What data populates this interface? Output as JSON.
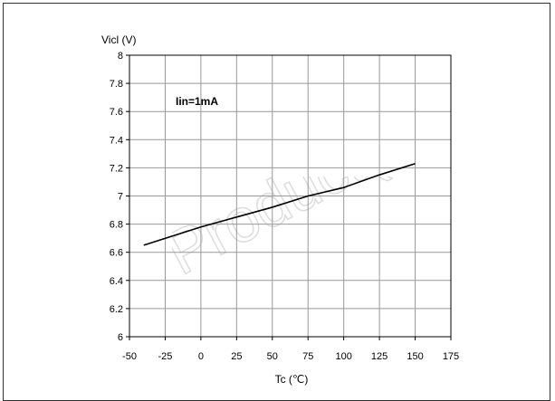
{
  "chart_data": {
    "type": "line",
    "ylabel": "Vicl (V)",
    "xlabel": "Tc (℃)",
    "annotation": "Iin=1mA",
    "xlim": [
      -50,
      175
    ],
    "ylim": [
      6,
      8
    ],
    "x_ticks": [
      "-50",
      "-25",
      "0",
      "25",
      "50",
      "75",
      "100",
      "125",
      "150",
      "175"
    ],
    "y_ticks": [
      "6",
      "6.2",
      "6.4",
      "6.6",
      "6.8",
      "7",
      "7.2",
      "7.4",
      "7.6",
      "7.8",
      "8"
    ],
    "grid": true,
    "series": [
      {
        "x": [
          -40,
          0,
          25,
          50,
          75,
          100,
          125,
          150
        ],
        "y": [
          6.65,
          6.78,
          6.85,
          6.92,
          7.0,
          7.06,
          7.15,
          7.23
        ]
      }
    ]
  },
  "watermark": {
    "text": "Product(s) - O"
  },
  "colors": {
    "line": "#000000",
    "grid": "#999999",
    "axis": "#000000",
    "watermark": "#dddddd"
  }
}
